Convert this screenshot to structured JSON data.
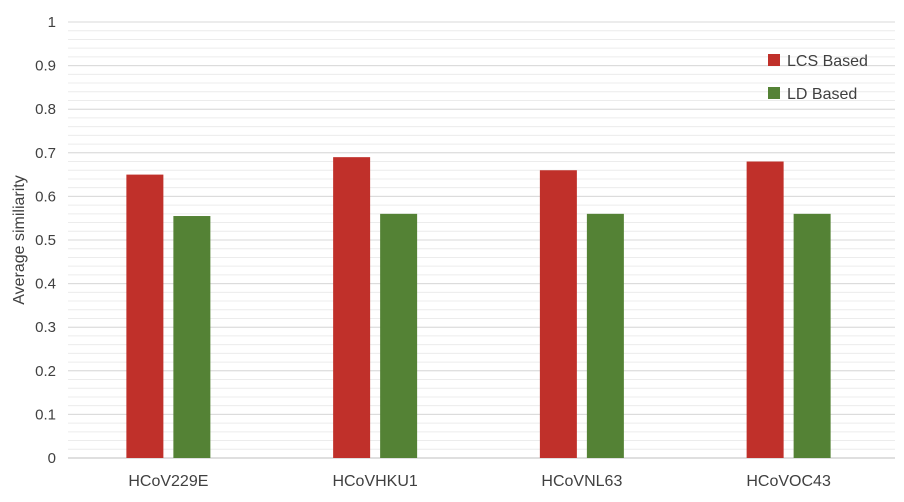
{
  "chart_data": {
    "type": "bar",
    "title": "",
    "xlabel": "",
    "ylabel": "Average similiarity",
    "ylim": [
      0,
      1
    ],
    "yticks": [
      "0",
      "0.1",
      "0.2",
      "0.3",
      "0.4",
      "0.5",
      "0.6",
      "0.7",
      "0.8",
      "0.9",
      "1"
    ],
    "grid": true,
    "legend_position": "top-right",
    "categories": [
      "HCoV229E",
      "HCoVHKU1",
      "HCoVNL63",
      "HCoVOC43"
    ],
    "series": [
      {
        "name": "LCS Based",
        "color": "#c0302a",
        "values": [
          0.65,
          0.69,
          0.66,
          0.68
        ]
      },
      {
        "name": "LD Based",
        "color": "#548235",
        "values": [
          0.555,
          0.56,
          0.56,
          0.56
        ]
      }
    ]
  }
}
